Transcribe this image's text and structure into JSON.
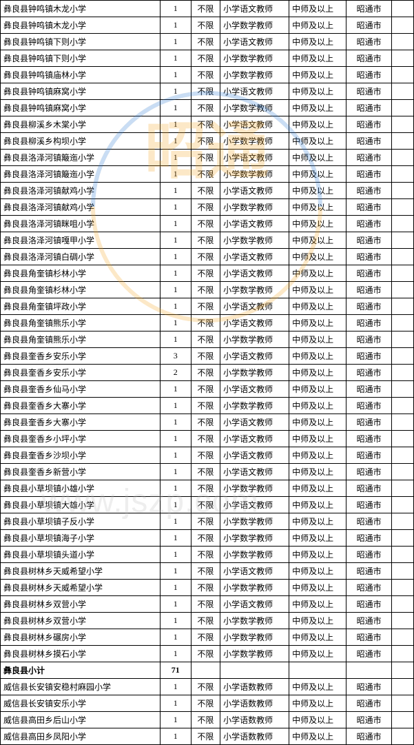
{
  "watermark": {
    "big_text": "昭通",
    "url": "www.jszp.com"
  },
  "columns": [
    "school",
    "count",
    "limit",
    "position",
    "qualification",
    "city"
  ],
  "rows": [
    {
      "school": "彝良县钟鸣镇木龙小学",
      "count": "1",
      "limit": "不限",
      "position": "小学语文教师",
      "qualification": "中师及以上",
      "city": "昭通市"
    },
    {
      "school": "彝良县钟鸣镇木龙小学",
      "count": "1",
      "limit": "不限",
      "position": "小学数学教师",
      "qualification": "中师及以上",
      "city": "昭通市"
    },
    {
      "school": "彝良县钟鸣镇下则小学",
      "count": "1",
      "limit": "不限",
      "position": "小学语文教师",
      "qualification": "中师及以上",
      "city": "昭通市"
    },
    {
      "school": "彝良县钟鸣镇下则小学",
      "count": "1",
      "limit": "不限",
      "position": "小学数学教师",
      "qualification": "中师及以上",
      "city": "昭通市"
    },
    {
      "school": "彝良县钟鸣镇庙林小学",
      "count": "1",
      "limit": "不限",
      "position": "小学数学教师",
      "qualification": "中师及以上",
      "city": "昭通市"
    },
    {
      "school": "彝良县钟鸣镇麻窝小学",
      "count": "1",
      "limit": "不限",
      "position": "小学语文教师",
      "qualification": "中师及以上",
      "city": "昭通市"
    },
    {
      "school": "彝良县钟鸣镇麻窝小学",
      "count": "1",
      "limit": "不限",
      "position": "小学数学教师",
      "qualification": "中师及以上",
      "city": "昭通市"
    },
    {
      "school": "彝良县柳溪乡木棠小学",
      "count": "1",
      "limit": "不限",
      "position": "小学语文教师",
      "qualification": "中师及以上",
      "city": "昭通市"
    },
    {
      "school": "彝良县柳溪乡构坝小学",
      "count": "1",
      "limit": "不限",
      "position": "小学数学教师",
      "qualification": "中师及以上",
      "city": "昭通市"
    },
    {
      "school": "彝良县洛泽河镇簸迤小学",
      "count": "1",
      "limit": "不限",
      "position": "小学语文教师",
      "qualification": "中师及以上",
      "city": "昭通市"
    },
    {
      "school": "彝良县洛泽河镇簸迤小学",
      "count": "1",
      "limit": "不限",
      "position": "小学数学教师",
      "qualification": "中师及以上",
      "city": "昭通市"
    },
    {
      "school": "彝良县洛泽河镇献鸡小学",
      "count": "1",
      "limit": "不限",
      "position": "小学语文教师",
      "qualification": "中师及以上",
      "city": "昭通市"
    },
    {
      "school": "彝良县洛泽河镇献鸡小学",
      "count": "1",
      "limit": "不限",
      "position": "小学数学教师",
      "qualification": "中师及以上",
      "city": "昭通市"
    },
    {
      "school": "彝良县洛泽河镇眯咀小学",
      "count": "1",
      "limit": "不限",
      "position": "小学语文教师",
      "qualification": "中师及以上",
      "city": "昭通市"
    },
    {
      "school": "彝良县洛泽河镇嘎甲小学",
      "count": "1",
      "limit": "不限",
      "position": "小学数学教师",
      "qualification": "中师及以上",
      "city": "昭通市"
    },
    {
      "school": "彝良县洛泽河镇白碉小学",
      "count": "1",
      "limit": "不限",
      "position": "小学语文教师",
      "qualification": "中师及以上",
      "city": "昭通市"
    },
    {
      "school": "彝良县角奎镇杉林小学",
      "count": "1",
      "limit": "不限",
      "position": "小学语文教师",
      "qualification": "中师及以上",
      "city": "昭通市"
    },
    {
      "school": "彝良县角奎镇杉林小学",
      "count": "1",
      "limit": "不限",
      "position": "小学数学教师",
      "qualification": "中师及以上",
      "city": "昭通市"
    },
    {
      "school": "彝良县角奎镇坪政小学",
      "count": "1",
      "limit": "不限",
      "position": "小学语文教师",
      "qualification": "中师及以上",
      "city": "昭通市"
    },
    {
      "school": "彝良县角奎镇熊乐小学",
      "count": "1",
      "limit": "不限",
      "position": "小学语文教师",
      "qualification": "中师及以上",
      "city": "昭通市"
    },
    {
      "school": "彝良县角奎镇熊乐小学",
      "count": "1",
      "limit": "不限",
      "position": "小学数学教师",
      "qualification": "中师及以上",
      "city": "昭通市"
    },
    {
      "school": "彝良县奎香乡安乐小学",
      "count": "3",
      "limit": "不限",
      "position": "小学语文教师",
      "qualification": "中师及以上",
      "city": "昭通市"
    },
    {
      "school": "彝良县奎香乡安乐小学",
      "count": "2",
      "limit": "不限",
      "position": "小学数学教师",
      "qualification": "中师及以上",
      "city": "昭通市"
    },
    {
      "school": "彝良县奎香乡仙马小学",
      "count": "1",
      "limit": "不限",
      "position": "小学语文教师",
      "qualification": "中师及以上",
      "city": "昭通市"
    },
    {
      "school": "彝良县奎香乡大寨小学",
      "count": "1",
      "limit": "不限",
      "position": "小学数学教师",
      "qualification": "中师及以上",
      "city": "昭通市"
    },
    {
      "school": "彝良县奎香乡大寨小学",
      "count": "1",
      "limit": "不限",
      "position": "小学语文教师",
      "qualification": "中师及以上",
      "city": "昭通市"
    },
    {
      "school": "彝良县奎香乡小坪小学",
      "count": "1",
      "limit": "不限",
      "position": "小学语文教师",
      "qualification": "中师及以上",
      "city": "昭通市"
    },
    {
      "school": "彝良县奎香乡沙坝小学",
      "count": "1",
      "limit": "不限",
      "position": "小学语文教师",
      "qualification": "中师及以上",
      "city": "昭通市"
    },
    {
      "school": "彝良县奎香乡新营小学",
      "count": "1",
      "limit": "不限",
      "position": "小学语文教师",
      "qualification": "中师及以上",
      "city": "昭通市"
    },
    {
      "school": "彝良县小草坝镇小雄小学",
      "count": "1",
      "limit": "不限",
      "position": "小学数学教师",
      "qualification": "中师及以上",
      "city": "昭通市"
    },
    {
      "school": "彝良县小草坝镇大雄小学",
      "count": "1",
      "limit": "不限",
      "position": "小学语文教师",
      "qualification": "中师及以上",
      "city": "昭通市"
    },
    {
      "school": "彝良县小草坝镇子反小学",
      "count": "1",
      "limit": "不限",
      "position": "小学数学教师",
      "qualification": "中师及以上",
      "city": "昭通市"
    },
    {
      "school": "彝良县小草坝镇海子小学",
      "count": "1",
      "limit": "不限",
      "position": "小学数学教师",
      "qualification": "中师及以上",
      "city": "昭通市"
    },
    {
      "school": "彝良县小草坝镇头道小学",
      "count": "1",
      "limit": "不限",
      "position": "小学数学教师",
      "qualification": "中师及以上",
      "city": "昭通市"
    },
    {
      "school": "彝良县树林乡天威希望小学",
      "count": "1",
      "limit": "不限",
      "position": "小学语文教师",
      "qualification": "中师及以上",
      "city": "昭通市"
    },
    {
      "school": "彝良县树林乡天威希望小学",
      "count": "1",
      "limit": "不限",
      "position": "小学数学教师",
      "qualification": "中师及以上",
      "city": "昭通市"
    },
    {
      "school": "彝良县树林乡双营小学",
      "count": "1",
      "limit": "不限",
      "position": "小学语文教师",
      "qualification": "中师及以上",
      "city": "昭通市"
    },
    {
      "school": "彝良县树林乡双营小学",
      "count": "1",
      "limit": "不限",
      "position": "小学数学教师",
      "qualification": "中师及以上",
      "city": "昭通市"
    },
    {
      "school": "彝良县树林乡碾房小学",
      "count": "1",
      "limit": "不限",
      "position": "小学数学教师",
      "qualification": "中师及以上",
      "city": "昭通市"
    },
    {
      "school": "彝良县树林乡摸石小学",
      "count": "1",
      "limit": "不限",
      "position": "小学数学教师",
      "qualification": "中师及以上",
      "city": "昭通市"
    },
    {
      "school": "彝良县小计",
      "count": "71",
      "limit": "",
      "position": "",
      "qualification": "",
      "city": "",
      "subtotal": true
    },
    {
      "school": "威信县长安镇安稳村麻园小学",
      "count": "1",
      "limit": "不限",
      "position": "小学语数教师",
      "qualification": "中师及以上",
      "city": "昭通市"
    },
    {
      "school": "威信县长安镇安乐小学",
      "count": "1",
      "limit": "不限",
      "position": "小学语数教师",
      "qualification": "中师及以上",
      "city": "昭通市"
    },
    {
      "school": "威信县高田乡后山小学",
      "count": "1",
      "limit": "不限",
      "position": "小学语数教师",
      "qualification": "中师及以上",
      "city": "昭通市"
    },
    {
      "school": "威信县高田乡凤阳小学",
      "count": "1",
      "limit": "不限",
      "position": "小学语数教师",
      "qualification": "中师及以上",
      "city": "昭通市"
    }
  ]
}
